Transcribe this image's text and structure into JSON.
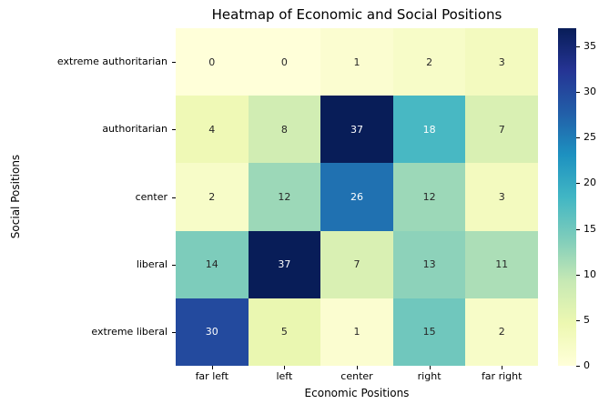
{
  "figure": {
    "background": "#ffffff"
  },
  "chart_data": {
    "type": "heatmap",
    "title": "Heatmap of Economic and Social Positions",
    "xlabel": "Economic Positions",
    "ylabel": "Social Positions",
    "x_categories": [
      "far left",
      "left",
      "center",
      "right",
      "far right"
    ],
    "y_categories": [
      "extreme authoritarian",
      "authoritarian",
      "center",
      "liberal",
      "extreme liberal"
    ],
    "values": [
      [
        0,
        0,
        1,
        2,
        3
      ],
      [
        4,
        8,
        37,
        18,
        7
      ],
      [
        2,
        12,
        26,
        12,
        3
      ],
      [
        14,
        37,
        7,
        13,
        11
      ],
      [
        30,
        5,
        1,
        15,
        2
      ]
    ],
    "vmin": 0,
    "vmax": 37,
    "colormap": "YlGnBu",
    "colormap_stops": [
      "#ffffd9",
      "#edf8b1",
      "#c7e9b4",
      "#7fcdbb",
      "#41b6c4",
      "#1d91c0",
      "#225ea8",
      "#253494",
      "#081d58"
    ],
    "colorbar_ticks": [
      0,
      5,
      10,
      15,
      20,
      25,
      30,
      35
    ],
    "annotation_colors": {
      "dark": "#262626",
      "light": "#ffffff"
    },
    "legend_position": "right",
    "grid": false
  }
}
